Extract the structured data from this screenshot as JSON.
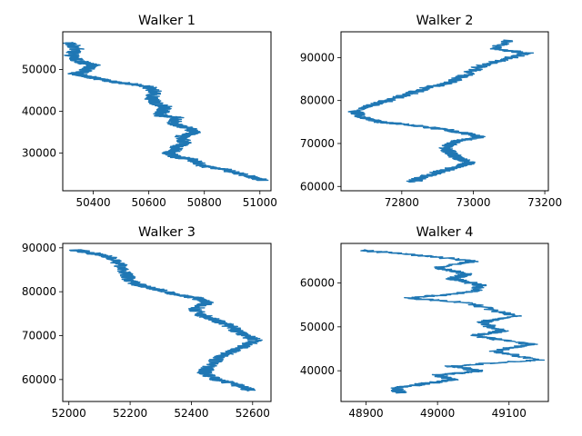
{
  "chart_data": [
    {
      "type": "line",
      "title": "Walker 1",
      "color": "#1f77b4",
      "xlim": [
        50290,
        51040
      ],
      "ylim": [
        21000,
        59000
      ],
      "xticks": [
        50400,
        50600,
        50800,
        51000
      ],
      "yticks": [
        30000,
        40000,
        50000
      ],
      "x": [
        50310,
        50340,
        50320,
        50345,
        50370,
        50400,
        50380,
        50360,
        50330,
        50400,
        50480,
        50590,
        50620,
        50610,
        50625,
        50660,
        50650,
        50640,
        50700,
        50690,
        50740,
        50770,
        50720,
        50730,
        50700,
        50690,
        50670,
        50700,
        50760,
        50790,
        50880,
        50960,
        51010
      ],
      "y": [
        56500,
        55000,
        53500,
        52000,
        51500,
        51000,
        50000,
        49300,
        49000,
        48000,
        47000,
        46000,
        45000,
        43000,
        42000,
        41000,
        40000,
        39000,
        38500,
        37000,
        36000,
        35000,
        34000,
        32500,
        31500,
        30500,
        30000,
        29000,
        28500,
        27000,
        26000,
        24500,
        23500
      ]
    },
    {
      "type": "line",
      "title": "Walker 2",
      "color": "#1f77b4",
      "xlim": [
        72630,
        73210
      ],
      "ylim": [
        59000,
        96000
      ],
      "xticks": [
        72800,
        73000,
        73200
      ],
      "yticks": [
        60000,
        70000,
        80000,
        90000
      ],
      "x": [
        73100,
        73060,
        73150,
        73080,
        73020,
        72980,
        72930,
        72870,
        72820,
        72740,
        72670,
        72690,
        72740,
        72800,
        72900,
        72970,
        73020,
        72950,
        72920,
        72940,
        72960,
        72990,
        72950,
        72890,
        72850,
        72830
      ],
      "y": [
        94000,
        92000,
        91000,
        89500,
        88000,
        86000,
        84000,
        83000,
        81500,
        79500,
        77500,
        76000,
        75000,
        74500,
        73500,
        72500,
        71500,
        70500,
        69000,
        67500,
        66500,
        65500,
        64500,
        63000,
        62000,
        61000
      ]
    },
    {
      "type": "line",
      "title": "Walker 3",
      "color": "#1f77b4",
      "xlim": [
        51980,
        52660
      ],
      "ylim": [
        55000,
        91000
      ],
      "xticks": [
        52000,
        52200,
        52400,
        52600
      ],
      "yticks": [
        60000,
        70000,
        80000,
        90000
      ],
      "x": [
        52020,
        52060,
        52130,
        52170,
        52190,
        52200,
        52230,
        52290,
        52340,
        52420,
        52450,
        52410,
        52440,
        52480,
        52530,
        52560,
        52610,
        52570,
        52520,
        52480,
        52460,
        52440,
        52480,
        52540,
        52600
      ],
      "y": [
        89500,
        89000,
        88000,
        86000,
        84000,
        82500,
        81500,
        80500,
        79500,
        78500,
        77500,
        76000,
        74500,
        73500,
        72000,
        70500,
        69000,
        67500,
        66000,
        64500,
        63000,
        61500,
        60000,
        59000,
        57500
      ]
    },
    {
      "type": "line",
      "title": "Walker 4",
      "color": "#1f77b4",
      "xlim": [
        48865,
        49155
      ],
      "ylim": [
        33000,
        69000
      ],
      "xticks": [
        48900,
        49000,
        49100
      ],
      "yticks": [
        40000,
        50000,
        60000
      ],
      "x": [
        48890,
        48960,
        49050,
        49000,
        49040,
        49020,
        49060,
        49050,
        48960,
        49040,
        49110,
        49060,
        49090,
        49050,
        49130,
        49080,
        49140,
        49020,
        49060,
        49000,
        49020,
        48980,
        48940,
        48950
      ],
      "y": [
        67500,
        66500,
        65000,
        63500,
        62000,
        61000,
        59500,
        58000,
        56500,
        55500,
        52500,
        51000,
        49000,
        48000,
        46000,
        44500,
        42500,
        41000,
        40000,
        39000,
        38000,
        37000,
        36000,
        35000
      ]
    }
  ]
}
